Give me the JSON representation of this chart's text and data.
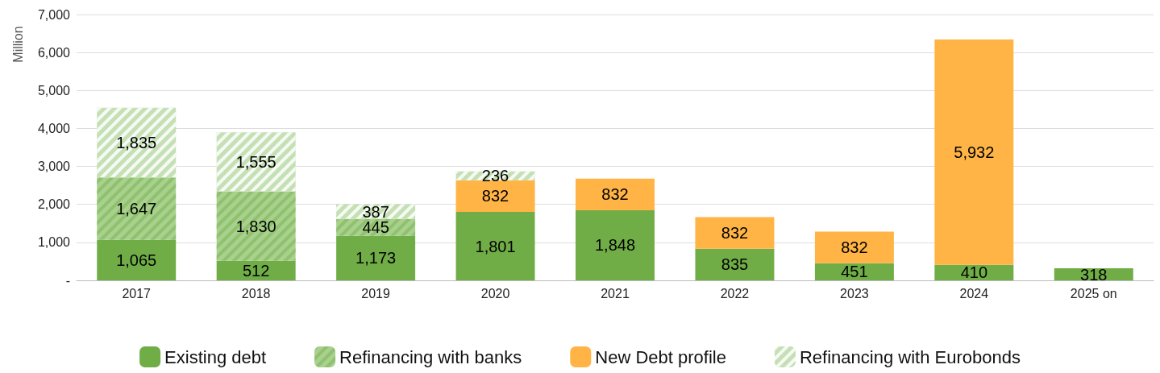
{
  "chart_data": {
    "type": "bar",
    "stacked": true,
    "ylabel": "Million",
    "categories": [
      "2017",
      "2018",
      "2019",
      "2020",
      "2021",
      "2022",
      "2023",
      "2024",
      "2025 on"
    ],
    "series": [
      {
        "name": "Existing debt",
        "color": "#70ad47",
        "values": [
          1065,
          512,
          1173,
          1801,
          1848,
          835,
          451,
          410,
          318
        ],
        "value_labels": [
          "1,065",
          "512",
          "1,173",
          "1,801",
          "1,848",
          "835",
          "451",
          "410",
          "318"
        ]
      },
      {
        "name": "Refinancing with banks",
        "color": "#a9d18e",
        "values": [
          1647,
          1830,
          445,
          null,
          null,
          null,
          null,
          null,
          null
        ],
        "value_labels": [
          "1,647",
          "1,830",
          "445",
          null,
          null,
          null,
          null,
          null,
          null
        ]
      },
      {
        "name": "New Debt profile",
        "color": "#ffb445",
        "values": [
          null,
          null,
          null,
          832,
          832,
          832,
          832,
          5932,
          null
        ],
        "value_labels": [
          null,
          null,
          null,
          "832",
          "832",
          "832",
          "832",
          "5,932",
          null
        ]
      },
      {
        "name": "Refinancing with Eurobonds",
        "color": "#c5e0b4",
        "values": [
          1835,
          1555,
          387,
          236,
          null,
          null,
          null,
          null,
          null
        ],
        "value_labels": [
          "1,835",
          "1,555",
          "387",
          "236",
          null,
          null,
          null,
          null,
          null
        ]
      }
    ],
    "ylim": [
      0,
      7000
    ],
    "yticks": [
      {
        "value": 0,
        "label": "-"
      },
      {
        "value": 1000,
        "label": "1,000"
      },
      {
        "value": 2000,
        "label": "2,000"
      },
      {
        "value": 3000,
        "label": "3,000"
      },
      {
        "value": 4000,
        "label": "4,000"
      },
      {
        "value": 5000,
        "label": "5,000"
      },
      {
        "value": 6000,
        "label": "6,000"
      },
      {
        "value": 7000,
        "label": "7,000"
      }
    ],
    "grid": "y",
    "legend": "bottom",
    "data_labels": true
  }
}
